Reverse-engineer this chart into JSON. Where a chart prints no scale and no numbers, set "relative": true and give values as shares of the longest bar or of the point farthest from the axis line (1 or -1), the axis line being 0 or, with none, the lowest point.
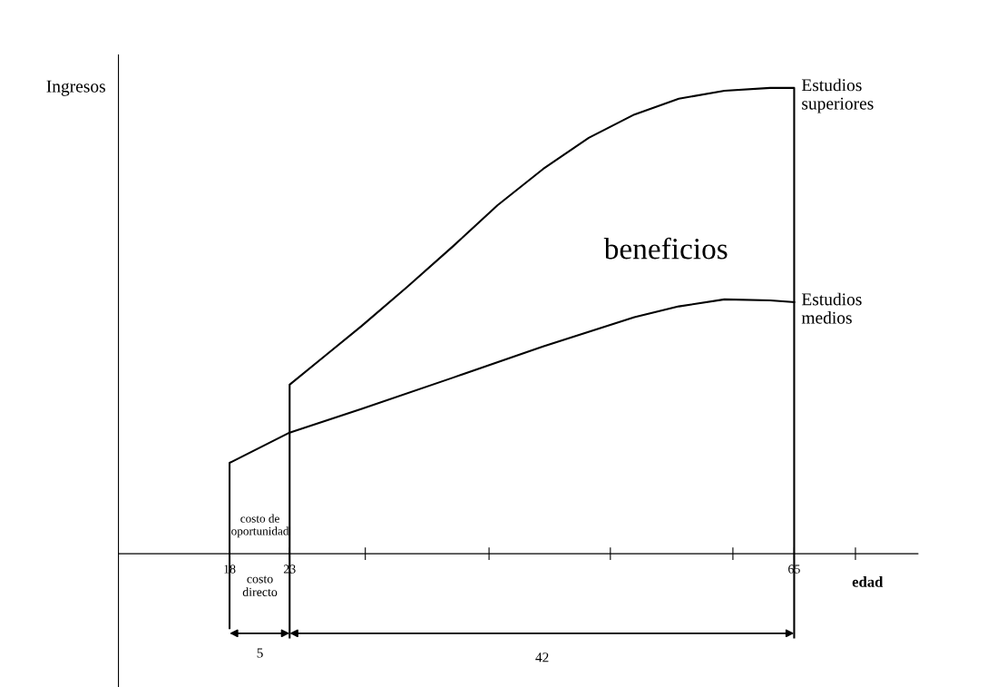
{
  "chart_data": {
    "type": "line",
    "relative": true,
    "xlabel": "edad",
    "ylabel": "Ingresos",
    "legend": false,
    "marker": "none",
    "line_style": "solid",
    "xlim": [
      8.75,
      75.3
    ],
    "xticks": [
      18,
      23,
      {
        "value": 29.3,
        "label": null
      },
      {
        "value": 39.6,
        "label": null
      },
      {
        "value": 49.7,
        "label": null
      },
      {
        "value": 59.9,
        "label": null
      },
      65,
      {
        "value": 70.1,
        "label": null
      }
    ],
    "series": [
      {
        "name": "Estudios superiores",
        "color": "#000000",
        "x": [
          23,
          23,
          26.0,
          29.0,
          32.8,
          36.6,
          40.3,
          44.1,
          47.9,
          51.7,
          55.4,
          59.2,
          63.0,
          65,
          65
        ],
        "values": [
          -0.18,
          0.363,
          0.426,
          0.489,
          0.573,
          0.66,
          0.748,
          0.826,
          0.893,
          0.943,
          0.977,
          0.994,
          1.0,
          1.0,
          -0.18
        ]
      },
      {
        "name": "Estudios medios",
        "color": "#000000",
        "x": [
          18,
          18,
          23,
          29.0,
          36.6,
          44.1,
          51.7,
          55.4,
          59.2,
          63.0,
          65
        ],
        "values": [
          -0.16,
          0.195,
          0.26,
          0.311,
          0.378,
          0.445,
          0.508,
          0.531,
          0.546,
          0.544,
          0.54
        ]
      }
    ],
    "annotations": [
      "beneficios",
      "costo de\noportunidad",
      "costo\ndirecto",
      "5",
      "42"
    ]
  }
}
